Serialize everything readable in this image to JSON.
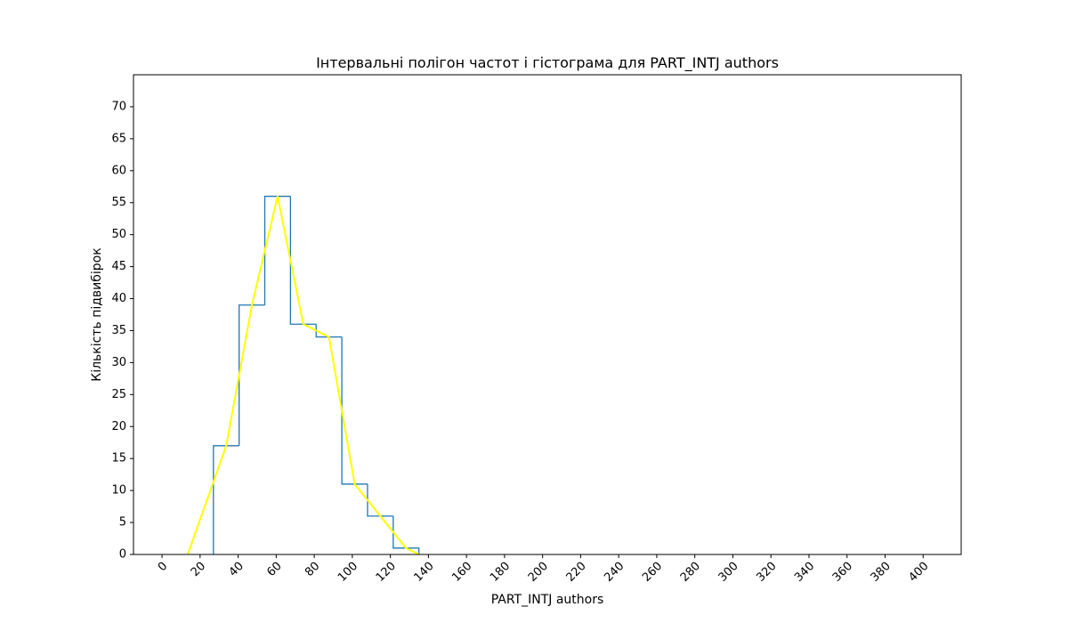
{
  "chart_data": {
    "type": "histogram",
    "title": "Інтервальні полігон частот і гістограма для PART_INTJ authors",
    "xlabel": "PART_INTJ authors",
    "ylabel": "Кількість підвибірок",
    "xlim": [
      -15,
      420
    ],
    "ylim": [
      0,
      75
    ],
    "x_ticks": [
      0,
      20,
      40,
      60,
      80,
      100,
      120,
      140,
      160,
      180,
      200,
      220,
      240,
      260,
      280,
      300,
      320,
      340,
      360,
      380,
      400
    ],
    "y_ticks": [
      0,
      5,
      10,
      15,
      20,
      25,
      30,
      35,
      40,
      45,
      50,
      55,
      60,
      65,
      70
    ],
    "grid": false,
    "histogram": {
      "color": "#1f77b4",
      "bin_edges": [
        27,
        40.5,
        54,
        67.5,
        81,
        94.5,
        108,
        121.5,
        135
      ],
      "counts": [
        17,
        39,
        56,
        36,
        34,
        11,
        6,
        1
      ]
    },
    "polygon": {
      "color": "#ffff00",
      "x": [
        13.5,
        33.75,
        47.25,
        60.75,
        74.25,
        87.75,
        101.25,
        114.75,
        128.25,
        135
      ],
      "y": [
        0,
        17,
        39,
        56,
        36,
        34,
        11,
        6,
        1,
        0
      ]
    }
  }
}
